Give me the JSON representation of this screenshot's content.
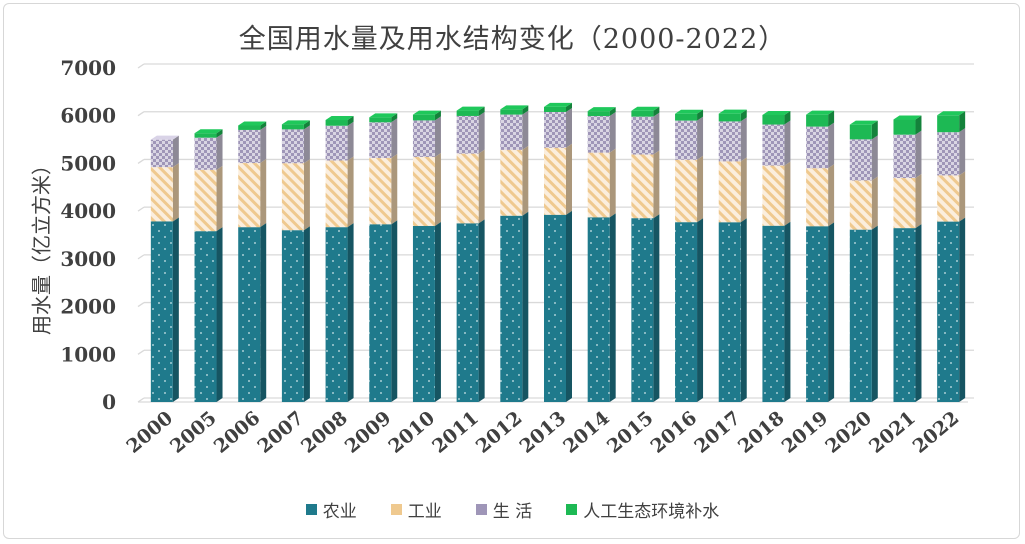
{
  "chart_data": {
    "type": "bar",
    "stacked": true,
    "title": "全国用水量及用水结构变化（2000-2022）",
    "ylabel": "用水量（亿立方米）",
    "xlabel": "",
    "ylim": [
      0,
      7000
    ],
    "yticks": [
      "0",
      "1000",
      "2000",
      "3000",
      "4000",
      "5000",
      "6000",
      "7000"
    ],
    "grid": true,
    "legend_position": "bottom",
    "categories": [
      "2000",
      "2005",
      "2006",
      "2007",
      "2008",
      "2009",
      "2010",
      "2011",
      "2012",
      "2013",
      "2014",
      "2015",
      "2016",
      "2017",
      "2018",
      "2019",
      "2020",
      "2021",
      "2022"
    ],
    "series": [
      {
        "name": "农业",
        "color": "#1f7a8c",
        "values": [
          3784,
          3580,
          3664,
          3600,
          3664,
          3723,
          3689,
          3743,
          3903,
          3922,
          3869,
          3852,
          3768,
          3766,
          3693,
          3682,
          3612,
          3644,
          3781
        ]
      },
      {
        "name": "工业",
        "color": "#f4d7b0",
        "values": [
          1139,
          1285,
          1344,
          1404,
          1397,
          1391,
          1447,
          1462,
          1381,
          1406,
          1357,
          1335,
          1308,
          1277,
          1262,
          1218,
          1030,
          1050,
          968
        ]
      },
      {
        "name": "生 活",
        "color": "#c9c3d6",
        "values": [
          575,
          675,
          694,
          710,
          729,
          748,
          766,
          790,
          740,
          750,
          767,
          794,
          822,
          838,
          860,
          872,
          863,
          909,
          906
        ]
      },
      {
        "name": "人工生态环境补水",
        "color": "#1db954",
        "values": [
          0,
          93,
          93,
          105,
          120,
          103,
          120,
          112,
          108,
          106,
          103,
          123,
          143,
          162,
          201,
          250,
          307,
          317,
          354
        ]
      }
    ]
  }
}
